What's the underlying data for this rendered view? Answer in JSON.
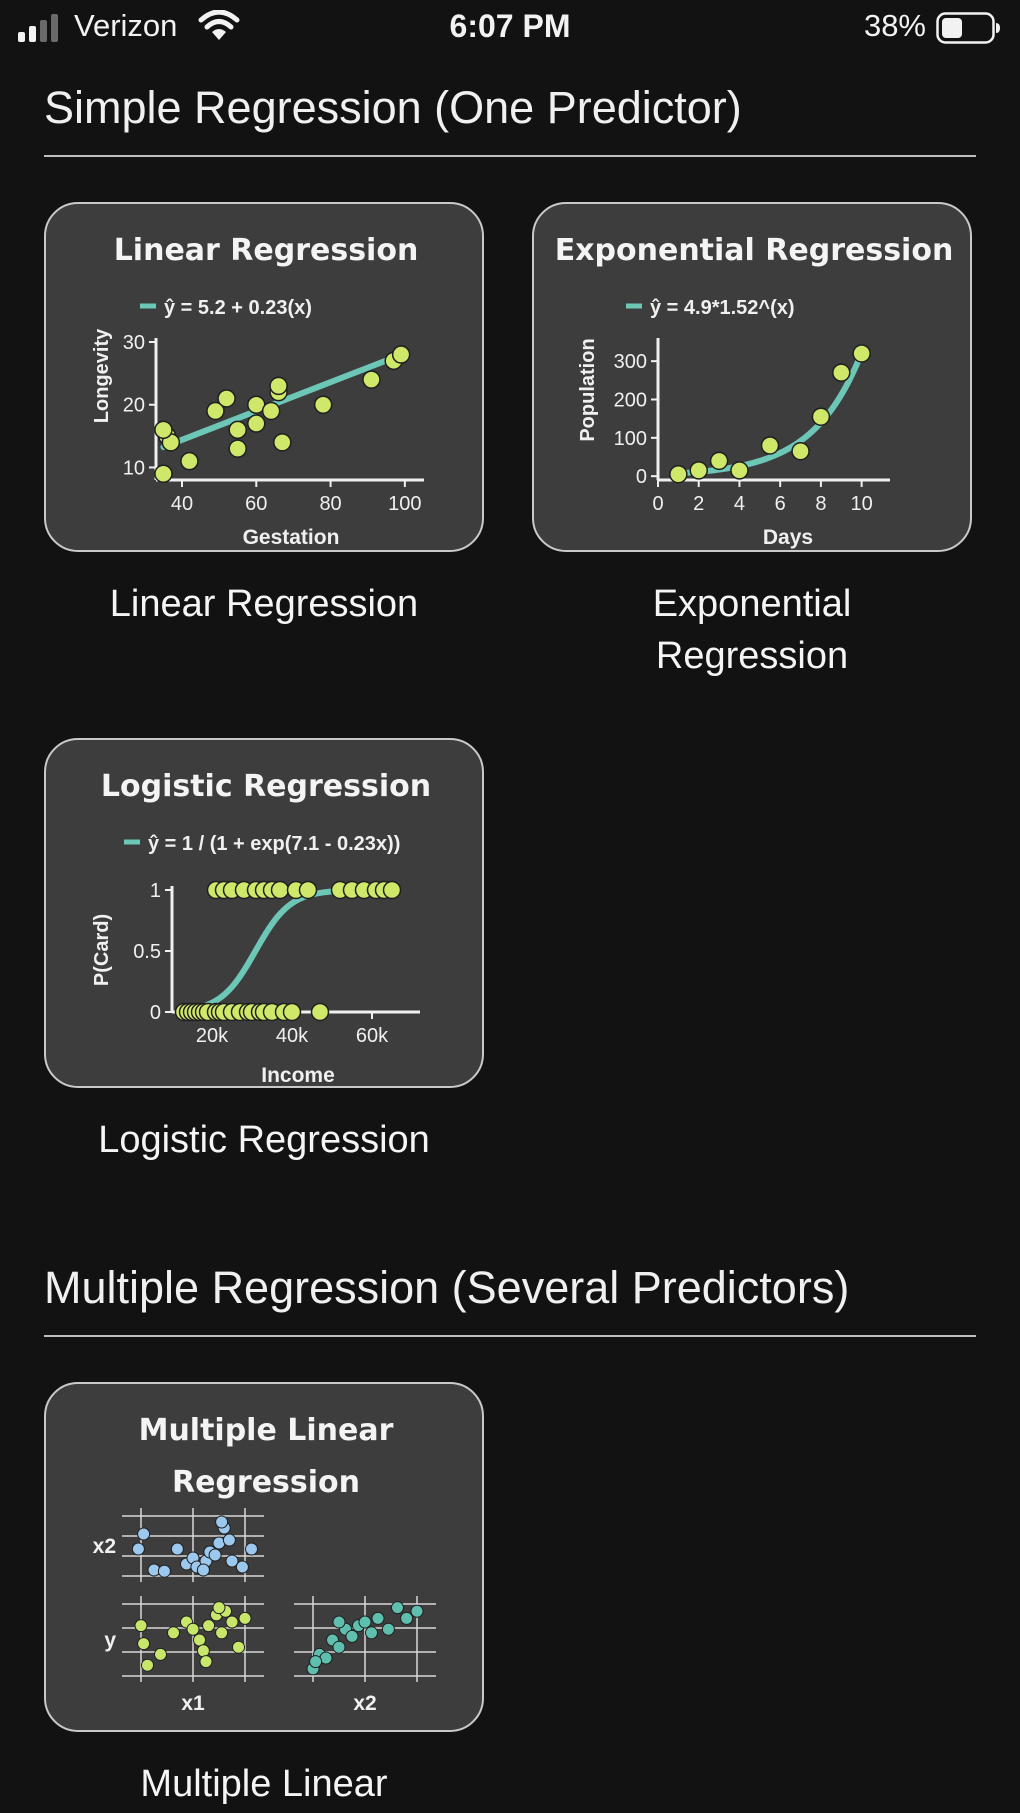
{
  "status_bar": {
    "carrier": "Verizon",
    "time": "6:07 PM",
    "battery_percent": "38%",
    "signal_icon": "signal-icon",
    "wifi_icon": "wifi-icon",
    "battery_icon": "battery-icon"
  },
  "sections": [
    {
      "title": "Simple Regression (One Predictor)",
      "tiles": [
        {
          "caption": "Linear Regression",
          "thumb_title": "Linear Regression",
          "equation": "ŷ = 5.2 + 0.23(x)",
          "chart_data": {
            "type": "scatter",
            "title": "Linear Regression",
            "xlabel": "Gestation",
            "ylabel": "Longevity",
            "xticks": [
              "40",
              "60",
              "80",
              "100"
            ],
            "yticks": [
              "10",
              "20",
              "30"
            ],
            "xlim": [
              33,
              103
            ],
            "ylim": [
              8,
              30
            ],
            "x": [
              35,
              36,
              37,
              35,
              42,
              49,
              52,
              55,
              55,
              60,
              60,
              64,
              66,
              66,
              67,
              78,
              91,
              97,
              99
            ],
            "y": [
              9,
              15,
              14,
              16,
              11,
              19,
              21,
              16,
              13,
              20,
              17,
              19,
              22,
              23,
              14,
              20,
              24,
              27,
              28
            ],
            "fit_line": {
              "x": [
                35,
                99
              ],
              "y": [
                13.25,
                27.97
              ]
            }
          }
        },
        {
          "caption": "Exponential Regression",
          "thumb_title": "Exponential Regression",
          "equation": "ŷ = 4.9*1.52^(x)",
          "chart_data": {
            "type": "scatter",
            "title": "Exponential Regression",
            "xlabel": "Days",
            "ylabel": "Population",
            "xticks": [
              "0",
              "2",
              "4",
              "6",
              "8",
              "10"
            ],
            "yticks": [
              "0",
              "100",
              "200",
              "300"
            ],
            "xlim": [
              0,
              11
            ],
            "ylim": [
              -10,
              350
            ],
            "x": [
              1,
              2,
              3,
              4,
              5.5,
              7,
              8,
              9,
              10
            ],
            "y": [
              5,
              15,
              40,
              15,
              80,
              65,
              155,
              270,
              320
            ],
            "fit_curve": {
              "a": 4.9,
              "b": 1.52,
              "x_from": 1,
              "x_to": 10
            }
          }
        }
      ]
    },
    {
      "tiles": [
        {
          "caption": "Logistic Regression",
          "thumb_title": "Logistic Regression",
          "equation": "ŷ = 1 / (1 + exp(7.1 - 0.23x))",
          "chart_data": {
            "type": "scatter",
            "title": "Logistic Regression",
            "xlabel": "Income",
            "ylabel": "P(Card)",
            "xticks": [
              "20k",
              "40k",
              "60k"
            ],
            "yticks": [
              "0",
              "0.5",
              "1"
            ],
            "xlim": [
              10,
              70
            ],
            "ylim": [
              0,
              1
            ],
            "x": [
              13,
              14,
              15,
              16,
              17,
              18,
              19,
              21,
              22,
              23,
              25,
              27,
              29,
              30,
              32,
              33,
              35,
              38,
              40,
              47,
              21,
              23,
              25,
              28,
              31,
              33,
              35,
              37,
              41,
              44,
              52,
              55,
              58,
              61,
              63,
              65
            ],
            "y": [
              0,
              0,
              0,
              0,
              0,
              0,
              0,
              0,
              0,
              0,
              0,
              0,
              0,
              0,
              0,
              0,
              0,
              0,
              0,
              0,
              1,
              1,
              1,
              1,
              1,
              1,
              1,
              1,
              1,
              1,
              1,
              1,
              1,
              1,
              1,
              1
            ],
            "fit_curve": {
              "intercept": 7.1,
              "slope": 0.23,
              "x_from": 12,
              "x_to": 66
            }
          }
        }
      ]
    },
    {
      "title": "Multiple Regression (Several Predictors)",
      "tiles": [
        {
          "caption": "Multiple Linear",
          "thumb_title_lines": [
            "Multiple Linear",
            "Regression"
          ],
          "chart_data": {
            "type": "scatter",
            "title": "Multiple Linear Regression",
            "panels": [
              {
                "name": "x2 vs x1",
                "ylabel": "x2",
                "color": "#9cc8ee",
                "x": [
                  0.08,
                  0.2,
                  0.28,
                  0.38,
                  0.45,
                  0.5,
                  0.53,
                  0.6,
                  0.63,
                  0.67,
                  0.7,
                  0.74,
                  0.78,
                  0.8,
                  0.88,
                  0.95,
                  0.12,
                  0.58,
                  0.72
                ],
                "y": [
                  0.45,
                  0.1,
                  0.08,
                  0.45,
                  0.2,
                  0.3,
                  0.15,
                  0.25,
                  0.4,
                  0.35,
                  0.55,
                  0.8,
                  0.6,
                  0.25,
                  0.15,
                  0.45,
                  0.7,
                  0.1,
                  0.9
                ]
              },
              {
                "name": "y vs x1",
                "ylabel": "y",
                "xlabel": "x1",
                "color": "#c8e66a",
                "x": [
                  0.1,
                  0.15,
                  0.25,
                  0.35,
                  0.45,
                  0.5,
                  0.55,
                  0.58,
                  0.62,
                  0.68,
                  0.72,
                  0.75,
                  0.8,
                  0.85,
                  0.9,
                  0.12,
                  0.6,
                  0.7
                ],
                "y": [
                  0.7,
                  0.15,
                  0.3,
                  0.6,
                  0.75,
                  0.65,
                  0.5,
                  0.35,
                  0.7,
                  0.85,
                  0.6,
                  0.9,
                  0.75,
                  0.4,
                  0.8,
                  0.45,
                  0.2,
                  0.95
                ]
              },
              {
                "name": "y vs x2",
                "xlabel": "x2",
                "color": "#5fbfae",
                "x": [
                  0.1,
                  0.15,
                  0.2,
                  0.25,
                  0.3,
                  0.35,
                  0.4,
                  0.45,
                  0.5,
                  0.55,
                  0.6,
                  0.68,
                  0.75,
                  0.82,
                  0.9,
                  0.12,
                  0.3
                ],
                "y": [
                  0.1,
                  0.3,
                  0.25,
                  0.5,
                  0.4,
                  0.65,
                  0.55,
                  0.7,
                  0.75,
                  0.6,
                  0.8,
                  0.65,
                  0.95,
                  0.8,
                  0.9,
                  0.2,
                  0.75
                ]
              }
            ]
          }
        }
      ]
    }
  ]
}
